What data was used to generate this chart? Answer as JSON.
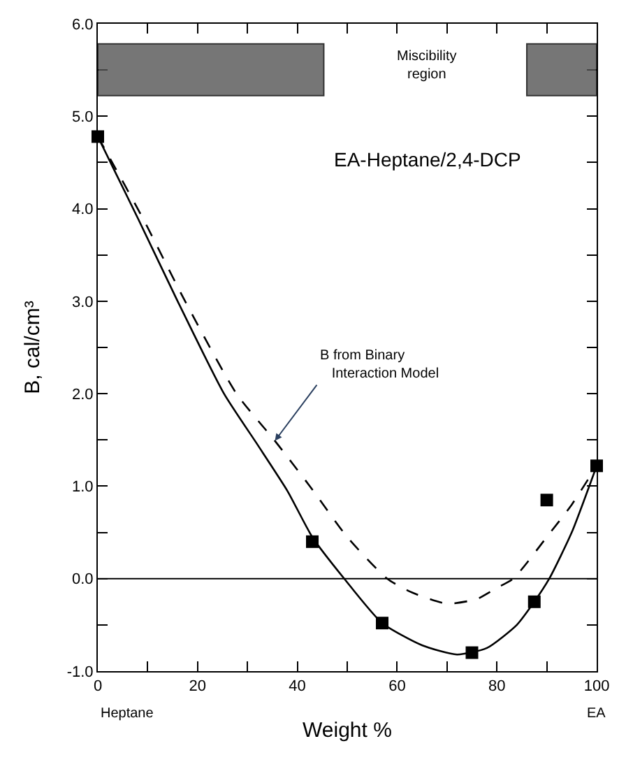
{
  "chart_data": {
    "type": "scatter",
    "xlabel": "Weight %",
    "ylabel": "B, cal/cm³",
    "xlim": [
      0,
      100
    ],
    "ylim": [
      -1.0,
      6.0
    ],
    "xticks": [
      0,
      {
        "value": 10,
        "label": null
      },
      20,
      {
        "value": 30,
        "label": null
      },
      40,
      {
        "value": 50,
        "label": null
      },
      60,
      {
        "value": 70,
        "label": null
      },
      80,
      {
        "value": 90,
        "label": null
      },
      100
    ],
    "yticks": [
      {
        "value": -1.0,
        "label": "-1.0"
      },
      {
        "value": -0.5,
        "label": null
      },
      {
        "value": 0.0,
        "label": "0.0"
      },
      {
        "value": 0.5,
        "label": null
      },
      {
        "value": 1.0,
        "label": "1.0"
      },
      {
        "value": 1.5,
        "label": null
      },
      {
        "value": 2.0,
        "label": "2.0"
      },
      {
        "value": 2.5,
        "label": null
      },
      {
        "value": 3.0,
        "label": "3.0"
      },
      {
        "value": 3.5,
        "label": null
      },
      {
        "value": 4.0,
        "label": "4.0"
      },
      {
        "value": 4.5,
        "label": null
      },
      {
        "value": 5.0,
        "label": "5.0"
      },
      {
        "value": 5.5,
        "label": null
      },
      {
        "value": 6.0,
        "label": "6.0"
      }
    ],
    "series": [
      {
        "marker": "square",
        "color": "#000000",
        "x": [
          0,
          43,
          57,
          75,
          87.5,
          90,
          100
        ],
        "values": [
          4.78,
          0.4,
          -0.48,
          -0.8,
          -0.25,
          0.85,
          1.22
        ]
      },
      {
        "type": "line",
        "marker": "none",
        "line_style": "solid",
        "color": "#000000",
        "x": [
          0,
          8,
          16,
          25.3,
          32,
          38,
          43,
          49.4,
          57,
          65,
          72,
          78,
          84,
          87.5,
          90.5,
          95,
          100
        ],
        "values": [
          4.78,
          3.9,
          3.0,
          2.0,
          1.45,
          0.95,
          0.45,
          0.0,
          -0.48,
          -0.72,
          -0.82,
          -0.75,
          -0.5,
          -0.25,
          0.0,
          0.5,
          1.22
        ]
      },
      {
        "type": "line",
        "marker": "none",
        "line_style": "dashed",
        "color": "#000000",
        "x": [
          0,
          9,
          17.5,
          27.8,
          35.5,
          42.5,
          50,
          58,
          63,
          70,
          76,
          80,
          83.3,
          90,
          95,
          100
        ],
        "values": [
          4.78,
          3.9,
          3.0,
          2.0,
          1.49,
          1.0,
          0.45,
          0.0,
          -0.15,
          -0.27,
          -0.22,
          -0.1,
          0.0,
          0.45,
          0.8,
          1.22
        ]
      }
    ],
    "ref_lines": [
      {
        "axis": "y",
        "value": 0.0,
        "color": "#000000",
        "line_style": "solid"
      }
    ],
    "bands": [
      {
        "axis": "x",
        "from": 0,
        "to": 45.3,
        "color": "#555555"
      },
      {
        "axis": "x",
        "from": 86,
        "to": 100,
        "color": "#555555"
      }
    ],
    "annotations": [
      "Miscibility region",
      "EA-Heptane/2,4-DCP",
      {
        "text": "B from Binary Interaction Model",
        "x": 35.5,
        "y": 1.49
      },
      "Heptane",
      "EA"
    ]
  }
}
